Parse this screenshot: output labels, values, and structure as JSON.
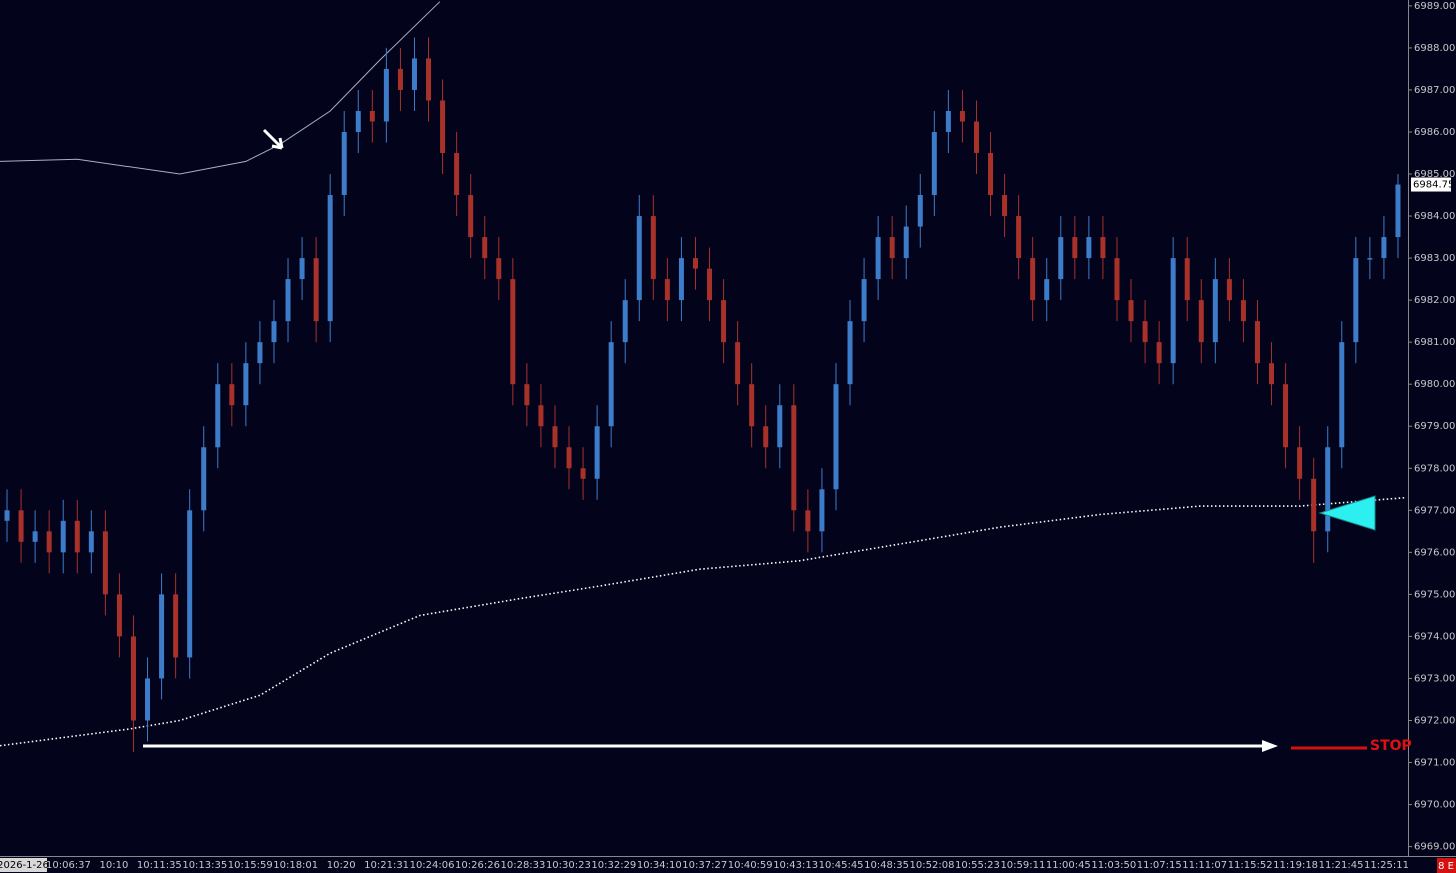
{
  "chart_data": {
    "type": "candlestick",
    "open": [
      6976.75,
      6977,
      6976.25,
      6976.5,
      6976,
      6976.75,
      6976,
      6976.5,
      6975,
      6974,
      6972,
      6973,
      6975,
      6973.5,
      6977,
      6978.5,
      6980,
      6979.5,
      6980.5,
      6981,
      6981.5,
      6982.5,
      6983,
      6981.5,
      6984.5,
      6986,
      6986.5,
      6986.25,
      6987.5,
      6987,
      6987.75,
      6986.75,
      6985.5,
      6984.5,
      6983.5,
      6983,
      6982.5,
      6980,
      6979.5,
      6979,
      6978.5,
      6978,
      6977.75,
      6979,
      6981,
      6982,
      6984,
      6982.5,
      6982,
      6983,
      6982.75,
      6982,
      6981,
      6980,
      6979,
      6978.5,
      6979.5,
      6977,
      6976.5,
      6977.5,
      6980,
      6981.5,
      6982.5,
      6983.5,
      6983,
      6983.75,
      6984.5,
      6986,
      6986.5,
      6986.25,
      6985.5,
      6984.5,
      6984,
      6983,
      6982,
      6982.5,
      6983.5,
      6983,
      6983.5,
      6983,
      6982,
      6981.5,
      6981,
      6980.5,
      6983,
      6982,
      6981,
      6982.5,
      6982,
      6981.5,
      6980.5,
      6980,
      6978.5,
      6977.75,
      6976.5,
      6978.5,
      6981,
      6983,
      6983,
      6983.5
    ],
    "high": [
      6977.5,
      6977.5,
      6977,
      6977,
      6977.25,
      6977.25,
      6977,
      6977,
      6975.5,
      6974.5,
      6973.5,
      6975.5,
      6975.5,
      6977.5,
      6979,
      6980.5,
      6980.5,
      6981,
      6981.5,
      6982,
      6983,
      6983.5,
      6983.5,
      6985,
      6986.5,
      6987,
      6987,
      6988,
      6988,
      6988.25,
      6988.25,
      6987.25,
      6986,
      6985,
      6984,
      6983.5,
      6983,
      6980.5,
      6980,
      6979.5,
      6979,
      6978.5,
      6979.5,
      6981.5,
      6982.5,
      6984.5,
      6984.5,
      6983,
      6983.5,
      6983.5,
      6983.25,
      6982.5,
      6981.5,
      6980.5,
      6979.5,
      6980,
      6980,
      6977.5,
      6978,
      6980.5,
      6982,
      6983,
      6984,
      6984,
      6984.25,
      6985,
      6986.5,
      6987,
      6987,
      6986.75,
      6986,
      6985,
      6984.5,
      6983.5,
      6983,
      6984,
      6984,
      6984,
      6984,
      6983.5,
      6982.5,
      6982,
      6981.5,
      6983.5,
      6983.5,
      6982.5,
      6983,
      6983,
      6982.5,
      6982,
      6981,
      6980.5,
      6979,
      6978.25,
      6979,
      6981.5,
      6983.5,
      6983.5,
      6984,
      6985
    ],
    "low": [
      6976.25,
      6975.75,
      6975.75,
      6975.5,
      6975.5,
      6975.5,
      6975.5,
      6974.5,
      6973.5,
      6971.25,
      6971.5,
      6972.5,
      6973,
      6973,
      6976.5,
      6978,
      6979,
      6979,
      6980,
      6980.5,
      6981,
      6982,
      6981,
      6981,
      6984,
      6985.5,
      6985.75,
      6985.75,
      6986.5,
      6986.5,
      6986.25,
      6985,
      6984,
      6983,
      6982.5,
      6982,
      6979.5,
      6979,
      6978.5,
      6978,
      6977.5,
      6977.25,
      6977.25,
      6978.5,
      6980.5,
      6981.5,
      6982,
      6981.5,
      6981.5,
      6982.25,
      6981.5,
      6980.5,
      6979.5,
      6978.5,
      6978,
      6978,
      6976.5,
      6976,
      6976,
      6977,
      6979.5,
      6981,
      6982,
      6982.5,
      6982.5,
      6983.25,
      6984,
      6985.5,
      6985.75,
      6985,
      6984,
      6983.5,
      6982.5,
      6981.5,
      6981.5,
      6982,
      6982.5,
      6982.5,
      6982.5,
      6981.5,
      6981,
      6980.5,
      6980,
      6980,
      6981.5,
      6980.5,
      6980.5,
      6981.5,
      6981,
      6980,
      6979.5,
      6978,
      6977.25,
      6975.75,
      6976,
      6978,
      6980.5,
      6982.5,
      6982.5,
      6983
    ],
    "close": [
      6977,
      6976.25,
      6976.5,
      6976,
      6976.75,
      6976,
      6976.5,
      6975,
      6974,
      6972,
      6973,
      6975,
      6973.5,
      6977,
      6978.5,
      6980,
      6979.5,
      6980.5,
      6981,
      6981.5,
      6982.5,
      6983,
      6981.5,
      6984.5,
      6986,
      6986.5,
      6986.25,
      6987.5,
      6987,
      6987.75,
      6986.75,
      6985.5,
      6984.5,
      6983.5,
      6983,
      6982.5,
      6980,
      6979.5,
      6979,
      6978.5,
      6978,
      6977.75,
      6979,
      6981,
      6982,
      6984,
      6982.5,
      6982,
      6983,
      6982.75,
      6982,
      6981,
      6980,
      6979,
      6978.5,
      6979.5,
      6977,
      6976.5,
      6977.5,
      6980,
      6981.5,
      6982.5,
      6983.5,
      6983,
      6983.75,
      6984.5,
      6986,
      6986.5,
      6986.25,
      6985.5,
      6984.5,
      6984,
      6983,
      6982,
      6982.5,
      6983.5,
      6983,
      6983.5,
      6983,
      6982,
      6981.5,
      6981,
      6980.5,
      6983,
      6982,
      6981,
      6982.5,
      6982,
      6981.5,
      6980.5,
      6980,
      6978.5,
      6977.75,
      6976.5,
      6978.5,
      6981,
      6983,
      6983,
      6983.5,
      6984.75
    ],
    "up_color": "#3d7cc9",
    "down_color": "#a8322a",
    "x_labels": [
      "2026-1-26",
      "10:06:37",
      "10:10",
      "10:11:35",
      "10:13:35",
      "10:15:59",
      "10:18:01",
      "10:20",
      "10:21:31",
      "10:24:06",
      "10:26:26",
      "10:28:33",
      "10:30:23",
      "10:32:29",
      "10:34:10",
      "10:37:27",
      "10:40:59",
      "10:43:13",
      "10:45:45",
      "10:48:35",
      "10:52:08",
      "10:55:23",
      "10:59:11",
      "11:00:45",
      "11:03:50",
      "11:07:15",
      "11:11:07",
      "11:15:52",
      "11:19:18",
      "11:21:45",
      "11:25:11"
    ],
    "moving_average": {
      "color": "#ffffff",
      "x": [
        -0.5,
        8.75,
        12.3,
        18,
        23,
        29.4,
        36.5,
        42.2,
        49.3,
        56.4,
        63.6,
        70.7,
        77.8,
        84.9,
        92,
        99.5
      ],
      "values": [
        6971.4,
        6971.8,
        6972,
        6972.6,
        6973.6,
        6974.5,
        6974.9,
        6975.2,
        6975.6,
        6975.8,
        6976.2,
        6976.6,
        6976.9,
        6977.1,
        6977.1,
        6977.3
      ]
    },
    "upper_band": {
      "color": "#aab0c0",
      "x": [
        -0.5,
        5,
        12.3,
        17,
        19.4,
        23,
        26.5,
        30.8
      ],
      "values": [
        6985.3,
        6985.35,
        6985,
        6985.3,
        6985.7,
        6986.5,
        6987.7,
        6989.1
      ]
    },
    "ylim": [
      6968.8,
      6989.14
    ],
    "yticks": [
      {
        "value": 6969,
        "label": "6969.00"
      },
      {
        "value": 6970,
        "label": "6970.00"
      },
      {
        "value": 6971,
        "label": "6971.00"
      },
      {
        "value": 6972,
        "label": "6972.00"
      },
      {
        "value": 6973,
        "label": "6973.00"
      },
      {
        "value": 6974,
        "label": "6974.00"
      },
      {
        "value": 6975,
        "label": "6975.00"
      },
      {
        "value": 6976,
        "label": "6976.00"
      },
      {
        "value": 6977,
        "label": "6977.00"
      },
      {
        "value": 6978,
        "label": "6978.00"
      },
      {
        "value": 6979,
        "label": "6979.00"
      },
      {
        "value": 6980,
        "label": "6980.00"
      },
      {
        "value": 6981,
        "label": "6981.00"
      },
      {
        "value": 6982,
        "label": "6982.00"
      },
      {
        "value": 6983,
        "label": "6983.00"
      },
      {
        "value": 6984,
        "label": "6984.00"
      },
      {
        "value": 6985,
        "label": "6985.00"
      },
      {
        "value": 6986,
        "label": "6986.00"
      },
      {
        "value": 6987,
        "label": "6987.00"
      },
      {
        "value": 6988,
        "label": "6988.00"
      },
      {
        "value": 6989,
        "label": "6989.00"
      }
    ],
    "last_price": {
      "value": 6984.75,
      "label": "6984.75"
    },
    "stop_label": "STOP",
    "corner_label": "8 E"
  }
}
